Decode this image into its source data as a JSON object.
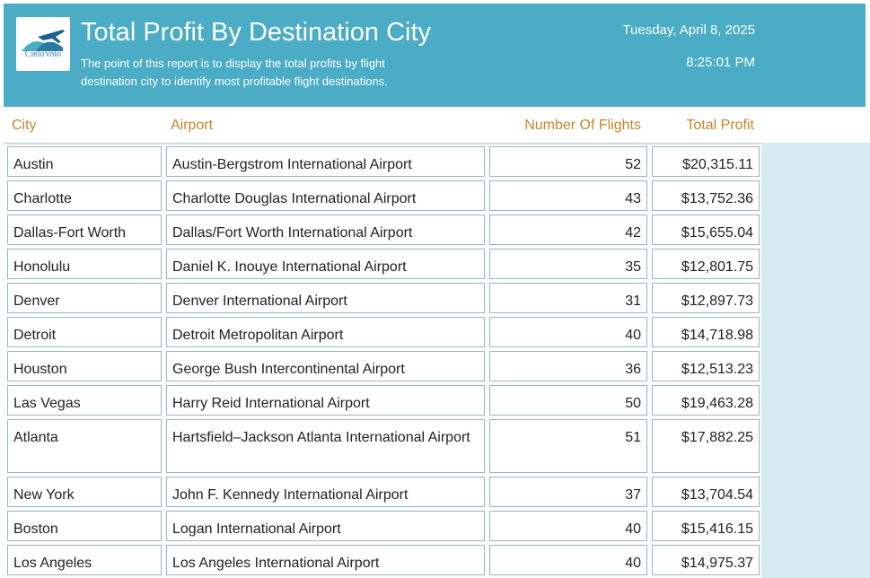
{
  "header": {
    "logo_text": "CieloVolo",
    "title": "Total Profit By Destination City",
    "subtitle": "The point of this report is to display the total profits by flight destination city to identify most profitable flight destinations.",
    "date": "Tuesday, April 8, 2025",
    "time": "8:25:01 PM"
  },
  "table": {
    "columns": [
      "City",
      "Airport",
      "Number Of Flights",
      "Total Profit"
    ],
    "rows": [
      {
        "city": "Austin",
        "airport": "Austin-Bergstrom International Airport",
        "flights": "52",
        "profit": "$20,315.11"
      },
      {
        "city": "Charlotte",
        "airport": "Charlotte Douglas International Airport",
        "flights": "43",
        "profit": "$13,752.36"
      },
      {
        "city": "Dallas-Fort Worth",
        "airport": "Dallas/Fort Worth International Airport",
        "flights": "42",
        "profit": "$15,655.04"
      },
      {
        "city": "Honolulu",
        "airport": "Daniel K. Inouye International Airport",
        "flights": "35",
        "profit": "$12,801.75"
      },
      {
        "city": "Denver",
        "airport": "Denver International Airport",
        "flights": "31",
        "profit": "$12,897.73"
      },
      {
        "city": "Detroit",
        "airport": "Detroit Metropolitan Airport",
        "flights": "40",
        "profit": "$14,718.98"
      },
      {
        "city": "Houston",
        "airport": "George Bush Intercontinental Airport",
        "flights": "36",
        "profit": "$12,513.23"
      },
      {
        "city": "Las Vegas",
        "airport": "Harry Reid International Airport",
        "flights": "50",
        "profit": "$19,463.28"
      },
      {
        "city": "Atlanta",
        "airport": "Hartsfield–Jackson Atlanta International Airport",
        "flights": "51",
        "profit": "$17,882.25"
      },
      {
        "city": "New York",
        "airport": "John F. Kennedy International Airport",
        "flights": "37",
        "profit": "$13,704.54"
      },
      {
        "city": "Boston",
        "airport": "Logan International Airport",
        "flights": "40",
        "profit": "$15,416.15"
      },
      {
        "city": "Los Angeles",
        "airport": "Los Angeles International Airport",
        "flights": "40",
        "profit": "$14,975.37"
      }
    ]
  }
}
